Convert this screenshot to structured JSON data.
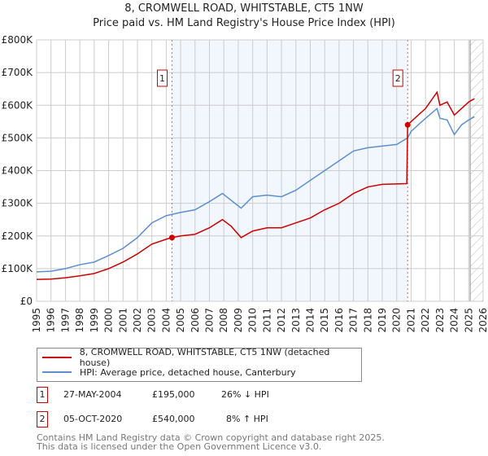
{
  "header": {
    "title": "8, CROMWELL ROAD, WHITSTABLE, CT5 1NW",
    "subtitle": "Price paid vs. HM Land Registry's House Price Index (HPI)"
  },
  "chart_data": {
    "type": "line",
    "title": "8, CROMWELL ROAD, WHITSTABLE, CT5 1NW",
    "subtitle": "Price paid vs. HM Land Registry's House Price Index (HPI)",
    "xlim": [
      1995,
      2026
    ],
    "ylim": [
      0,
      800000
    ],
    "x_ticks": [
      "1995",
      "1996",
      "1997",
      "1998",
      "1999",
      "2000",
      "2001",
      "2002",
      "2003",
      "2004",
      "2005",
      "2006",
      "2007",
      "2008",
      "2009",
      "2010",
      "2011",
      "2012",
      "2013",
      "2014",
      "2015",
      "2016",
      "2017",
      "2018",
      "2019",
      "2020",
      "2021",
      "2022",
      "2023",
      "2024",
      "2025",
      "2026"
    ],
    "y_ticks": [
      {
        "v": 0,
        "label": "£0"
      },
      {
        "v": 100000,
        "label": "£100K"
      },
      {
        "v": 200000,
        "label": "£200K"
      },
      {
        "v": 300000,
        "label": "£300K"
      },
      {
        "v": 400000,
        "label": "£400K"
      },
      {
        "v": 500000,
        "label": "£500K"
      },
      {
        "v": 600000,
        "label": "£600K"
      },
      {
        "v": 700000,
        "label": "£700K"
      },
      {
        "v": 800000,
        "label": "£800K"
      }
    ],
    "grid": true,
    "shaded_range": [
      2004.4,
      2020.76
    ],
    "hatched_from": 2025.1,
    "series": [
      {
        "name": "8, CROMWELL ROAD, WHITSTABLE, CT5 1NW (detached house)",
        "color": "#cc0000",
        "x": [
          1995,
          1996,
          1997,
          1998,
          1999,
          2000,
          2001,
          2002,
          2003,
          2004,
          2004.4,
          2005,
          2006,
          2007,
          2007.9,
          2008.5,
          2009.2,
          2010,
          2011,
          2012,
          2013,
          2014,
          2015,
          2016,
          2017,
          2018,
          2019,
          2020.7,
          2020.76,
          2021,
          2022,
          2022.8,
          2023,
          2023.5,
          2024,
          2024.5,
          2025,
          2025.4
        ],
        "y": [
          67000,
          68000,
          72000,
          78000,
          85000,
          100000,
          120000,
          145000,
          175000,
          190000,
          195000,
          200000,
          205000,
          225000,
          250000,
          230000,
          195000,
          215000,
          225000,
          225000,
          240000,
          255000,
          280000,
          300000,
          330000,
          350000,
          358000,
          360000,
          540000,
          550000,
          590000,
          640000,
          600000,
          610000,
          570000,
          590000,
          610000,
          620000
        ]
      },
      {
        "name": "HPI: Average price, detached house, Canterbury",
        "color": "#5b8fd0",
        "x": [
          1995,
          1996,
          1997,
          1998,
          1999,
          2000,
          2001,
          2002,
          2003,
          2004,
          2005,
          2006,
          2007,
          2007.9,
          2009.2,
          2010,
          2011,
          2012,
          2013,
          2014,
          2015,
          2016,
          2017,
          2018,
          2019,
          2020,
          2020.76,
          2021,
          2022,
          2022.8,
          2023,
          2023.5,
          2024,
          2024.5,
          2025,
          2025.4
        ],
        "y": [
          90000,
          92000,
          100000,
          112000,
          120000,
          140000,
          162000,
          195000,
          240000,
          262000,
          272000,
          280000,
          305000,
          330000,
          285000,
          320000,
          325000,
          320000,
          340000,
          370000,
          400000,
          430000,
          460000,
          470000,
          475000,
          480000,
          500000,
          520000,
          560000,
          590000,
          560000,
          555000,
          510000,
          540000,
          555000,
          565000
        ]
      }
    ],
    "annotations": [
      {
        "label": "1",
        "x": 2004.4,
        "y": 195000
      },
      {
        "label": "2",
        "x": 2020.76,
        "y": 540000
      }
    ],
    "legend_position": "below"
  },
  "legend": [
    {
      "label": "8, CROMWELL ROAD, WHITSTABLE, CT5 1NW (detached house)",
      "color": "#cc0000"
    },
    {
      "label": "HPI: Average price, detached house, Canterbury",
      "color": "#5b8fd0"
    }
  ],
  "sales": [
    {
      "num": "1",
      "date": "27-MAY-2004",
      "price": "£195,000",
      "hpi": "26% ↓ HPI"
    },
    {
      "num": "2",
      "date": "05-OCT-2020",
      "price": "£540,000",
      "hpi": "8% ↑ HPI"
    }
  ],
  "footer": {
    "line1": "Contains HM Land Registry data © Crown copyright and database right 2025.",
    "line2": "This data is licensed under the Open Government Licence v3.0."
  }
}
